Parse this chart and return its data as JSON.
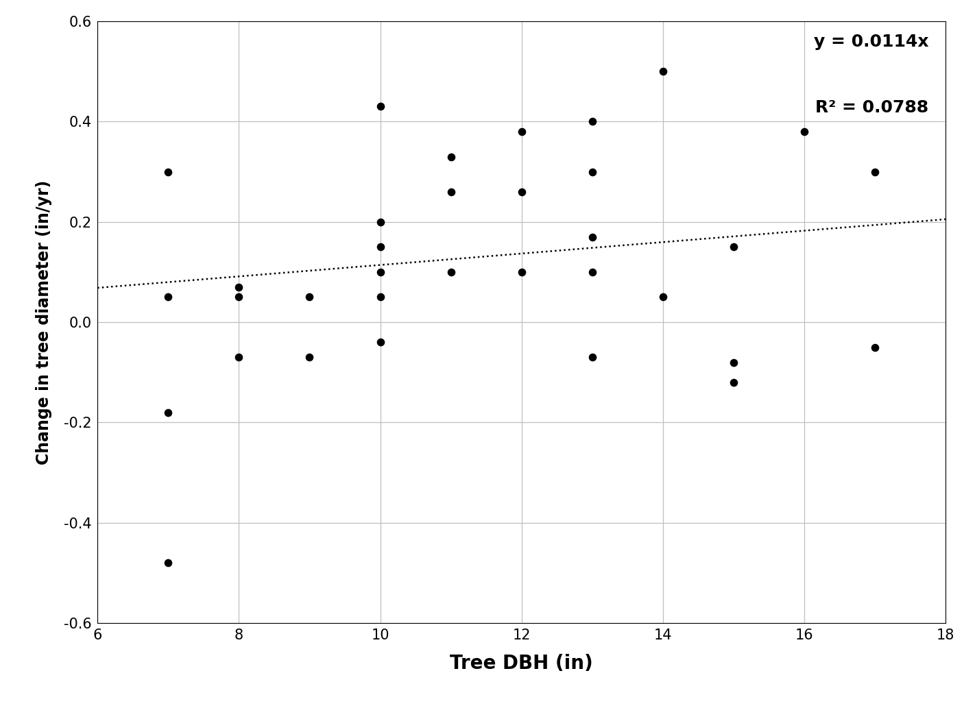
{
  "x_data": [
    7,
    7,
    7,
    8,
    8,
    8,
    9,
    9,
    10,
    10,
    10,
    10,
    10,
    10,
    11,
    11,
    11,
    12,
    12,
    12,
    13,
    13,
    13,
    13,
    14,
    14,
    15,
    15,
    15,
    16,
    17,
    17,
    7,
    13
  ],
  "y_data": [
    0.05,
    0.3,
    -0.18,
    0.07,
    0.05,
    -0.07,
    0.05,
    -0.07,
    0.43,
    0.2,
    0.15,
    0.1,
    0.05,
    -0.04,
    0.33,
    0.26,
    0.1,
    0.38,
    0.26,
    0.1,
    0.4,
    0.3,
    0.17,
    0.1,
    0.5,
    0.05,
    0.15,
    -0.08,
    -0.12,
    0.38,
    0.3,
    -0.05,
    -0.48,
    -0.07
  ],
  "slope": 0.0114,
  "r_squared": 0.0788,
  "x_range": [
    6,
    18
  ],
  "y_range": [
    -0.6,
    0.6
  ],
  "x_ticks": [
    6,
    8,
    10,
    12,
    14,
    16,
    18
  ],
  "y_ticks": [
    -0.6,
    -0.4,
    -0.2,
    0.0,
    0.2,
    0.4,
    0.6
  ],
  "xlabel": "Tree DBH (in)",
  "ylabel": "Change in tree diameter (in/yr)",
  "equation_text": "y = 0.0114x",
  "r2_text": "R² = 0.0788",
  "dot_color": "#000000",
  "line_color": "#000000",
  "bg_color": "#ffffff",
  "grid_color": "#bfbfbf",
  "dot_size": 70,
  "xlabel_fontsize": 20,
  "ylabel_fontsize": 17,
  "tick_fontsize": 15,
  "eq_fontsize": 18
}
